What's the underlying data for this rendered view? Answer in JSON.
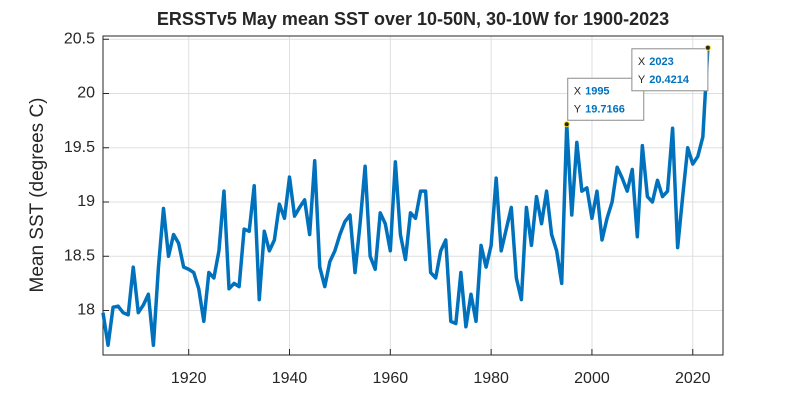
{
  "chart_data": {
    "type": "line",
    "title": "ERSSTv5 May mean SST over 10-50N, 30-10W for 1900-2023",
    "y_label": "Mean SST (degrees C)",
    "x": [
      1903,
      1904,
      1905,
      1906,
      1907,
      1908,
      1909,
      1910,
      1911,
      1912,
      1913,
      1914,
      1915,
      1916,
      1917,
      1918,
      1919,
      1920,
      1921,
      1922,
      1923,
      1924,
      1925,
      1926,
      1927,
      1928,
      1929,
      1930,
      1931,
      1932,
      1933,
      1934,
      1935,
      1936,
      1937,
      1938,
      1939,
      1940,
      1941,
      1942,
      1943,
      1944,
      1945,
      1946,
      1947,
      1948,
      1949,
      1950,
      1951,
      1952,
      1953,
      1954,
      1955,
      1956,
      1957,
      1958,
      1959,
      1960,
      1961,
      1962,
      1963,
      1964,
      1965,
      1966,
      1967,
      1968,
      1969,
      1970,
      1971,
      1972,
      1973,
      1974,
      1975,
      1976,
      1977,
      1978,
      1979,
      1980,
      1981,
      1982,
      1983,
      1984,
      1985,
      1986,
      1987,
      1988,
      1989,
      1990,
      1991,
      1992,
      1993,
      1994,
      1995,
      1996,
      1997,
      1998,
      1999,
      2000,
      2001,
      2002,
      2003,
      2004,
      2005,
      2006,
      2007,
      2008,
      2009,
      2010,
      2011,
      2012,
      2013,
      2014,
      2015,
      2016,
      2017,
      2018,
      2019,
      2020,
      2021,
      2022,
      2023
    ],
    "series": [
      {
        "color": "#0072bd",
        "values": [
          17.98,
          17.68,
          18.03,
          18.04,
          17.98,
          17.96,
          18.4,
          17.98,
          18.05,
          18.15,
          17.68,
          18.4,
          18.94,
          18.5,
          18.7,
          18.62,
          18.4,
          18.38,
          18.35,
          18.2,
          17.9,
          18.35,
          18.3,
          18.55,
          19.1,
          18.2,
          18.25,
          18.22,
          18.75,
          18.73,
          19.15,
          18.1,
          18.73,
          18.55,
          18.65,
          18.98,
          18.85,
          19.23,
          18.87,
          18.95,
          19.02,
          18.7,
          19.38,
          18.4,
          18.22,
          18.45,
          18.55,
          18.7,
          18.82,
          18.88,
          18.35,
          18.8,
          19.33,
          18.5,
          18.38,
          18.9,
          18.8,
          18.55,
          19.37,
          18.7,
          18.47,
          18.9,
          18.85,
          19.1,
          19.1,
          18.35,
          18.3,
          18.55,
          18.65,
          17.9,
          17.88,
          18.35,
          17.85,
          18.15,
          17.9,
          18.6,
          18.4,
          18.6,
          19.22,
          18.55,
          18.75,
          18.95,
          18.3,
          18.1,
          18.95,
          18.6,
          19.05,
          18.8,
          19.1,
          18.7,
          18.55,
          18.25,
          19.7166,
          18.88,
          19.55,
          19.1,
          19.13,
          18.85,
          19.1,
          18.65,
          18.85,
          19.0,
          19.32,
          19.22,
          19.1,
          19.3,
          18.68,
          19.52,
          19.05,
          19.0,
          19.2,
          19.05,
          19.1,
          19.68,
          18.58,
          19.05,
          19.5,
          19.35,
          19.42,
          19.6,
          20.4214
        ]
      }
    ],
    "xlim": [
      1903,
      2026
    ],
    "ylim": [
      17.59,
      20.53
    ],
    "xticks": [
      1920,
      1940,
      1960,
      1980,
      2000,
      2020
    ],
    "yticks": [
      18,
      18.5,
      19,
      19.5,
      20,
      20.5
    ],
    "grid": true,
    "datatip_x_label": "X",
    "datatip_y_label": "Y",
    "datatips": [
      92,
      120
    ]
  }
}
